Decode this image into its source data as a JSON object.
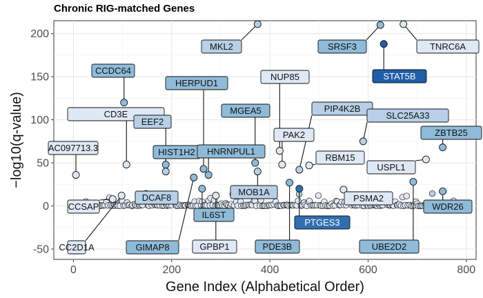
{
  "chart_data": {
    "type": "scatter",
    "title": "Chronic RIG-matched Genes",
    "xlabel": "Gene Index (Alphabetical Order)",
    "ylabel": "−log10(q-value)",
    "xlim": [
      -40,
      820
    ],
    "ylim": [
      -62,
      215
    ],
    "x_ticks": [
      0,
      200,
      400,
      600,
      800
    ],
    "y_ticks": [
      -50,
      0,
      50,
      100,
      150,
      200
    ],
    "grid": true,
    "legend": "none",
    "colors": {
      "very_light": "#dfe9f5",
      "light": "#b7d0e7",
      "medium": "#8fbbd9",
      "dark": "#2f6fb0",
      "darkest": "#1f5ea8"
    },
    "labeled_points": [
      {
        "gene": "AC097713.3",
        "x": 5,
        "y": 36,
        "shade": "very_light"
      },
      {
        "gene": "CD3E",
        "x": 108,
        "y": 48,
        "shade": "very_light"
      },
      {
        "gene": "CCSAP",
        "x": 80,
        "y": 8,
        "shade": "very_light"
      },
      {
        "gene": "CC2D1A",
        "x": 98,
        "y": 12,
        "shade": "very_light"
      },
      {
        "gene": "CCDC64",
        "x": 103,
        "y": 120,
        "shade": "medium"
      },
      {
        "gene": "EEF2",
        "x": 188,
        "y": 40,
        "shade": "light"
      },
      {
        "gene": "DCAF8",
        "x": 190,
        "y": 10,
        "shade": "light"
      },
      {
        "gene": "HIST1H2",
        "x": 188,
        "y": 48,
        "shade": "medium"
      },
      {
        "gene": "GIMAP8",
        "x": 245,
        "y": 33,
        "shade": "medium"
      },
      {
        "gene": "HERPUD1",
        "x": 265,
        "y": 43,
        "shade": "medium"
      },
      {
        "gene": "HNRNPUL1",
        "x": 275,
        "y": 36,
        "shade": "medium"
      },
      {
        "gene": "IL6ST",
        "x": 262,
        "y": 20,
        "shade": "medium"
      },
      {
        "gene": "GPBP1",
        "x": 290,
        "y": 12,
        "shade": "very_light"
      },
      {
        "gene": "MKL2",
        "x": 375,
        "y": 211,
        "shade": "light"
      },
      {
        "gene": "MGEA5",
        "x": 370,
        "y": 50,
        "shade": "medium"
      },
      {
        "gene": "MOB1A",
        "x": 375,
        "y": 40,
        "shade": "light"
      },
      {
        "gene": "NUP85",
        "x": 420,
        "y": 64,
        "shade": "very_light"
      },
      {
        "gene": "PAK2",
        "x": 425,
        "y": 48,
        "shade": "very_light"
      },
      {
        "gene": "PDE3B",
        "x": 440,
        "y": 27,
        "shade": "medium"
      },
      {
        "gene": "PIP4K2B",
        "x": 460,
        "y": 42,
        "shade": "light"
      },
      {
        "gene": "PTGES3",
        "x": 460,
        "y": 20,
        "shade": "dark"
      },
      {
        "gene": "RBM15",
        "x": 480,
        "y": 47,
        "shade": "very_light"
      },
      {
        "gene": "PSMA2",
        "x": 550,
        "y": 19,
        "shade": "very_light"
      },
      {
        "gene": "SRSF3",
        "x": 625,
        "y": 210,
        "shade": "medium"
      },
      {
        "gene": "SLC25A33",
        "x": 590,
        "y": 75,
        "shade": "light"
      },
      {
        "gene": "STAT5B",
        "x": 632,
        "y": 188,
        "shade": "darkest"
      },
      {
        "gene": "TNRC6A",
        "x": 672,
        "y": 211,
        "shade": "very_light"
      },
      {
        "gene": "USPL1",
        "x": 718,
        "y": 54,
        "shade": "very_light"
      },
      {
        "gene": "UBE2D2",
        "x": 692,
        "y": 28,
        "shade": "medium"
      },
      {
        "gene": "ZBTB25",
        "x": 752,
        "y": 68,
        "shade": "medium"
      },
      {
        "gene": "WDR26",
        "x": 752,
        "y": 17,
        "shade": "medium"
      }
    ]
  }
}
